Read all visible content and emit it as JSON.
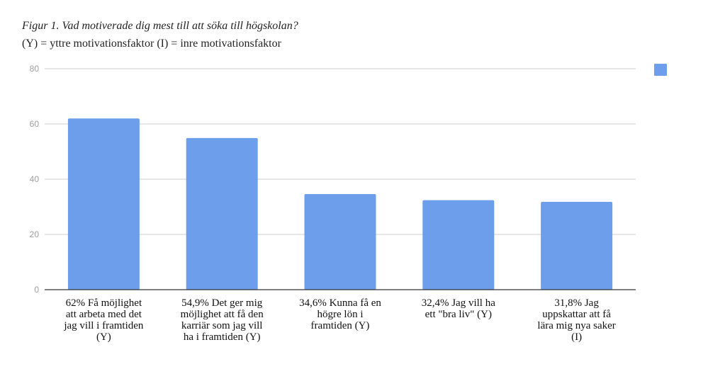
{
  "chart_data": {
    "type": "bar",
    "title": "Figur 1. Vad motiverade dig mest till att söka till högskolan?",
    "subtitle": "(Y) = yttre motivationsfaktor (I) = inre motivationsfaktor",
    "categories": [
      [
        "62% Få möjlighet",
        "att arbeta med det",
        "jag vill i framtiden",
        "(Y)"
      ],
      [
        "54,9% Det ger mig",
        "möjlighet att få den",
        "karriär som jag vill",
        "ha i framtiden (Y)"
      ],
      [
        "34,6% Kunna få en",
        "högre lön i",
        "framtiden (Y)"
      ],
      [
        "32,4% Jag vill ha",
        "ett \"bra liv\" (Y)"
      ],
      [
        "31,8% Jag",
        "uppskattar att få",
        "lära mig nya saker",
        "(I)"
      ]
    ],
    "values": [
      62,
      54.9,
      34.6,
      32.4,
      31.8
    ],
    "ylim": [
      0,
      80
    ],
    "yticks": [
      "0",
      "20",
      "40",
      "60",
      "80"
    ],
    "grid": true,
    "legend_position": "right",
    "bar_color": "#6d9eeb"
  }
}
